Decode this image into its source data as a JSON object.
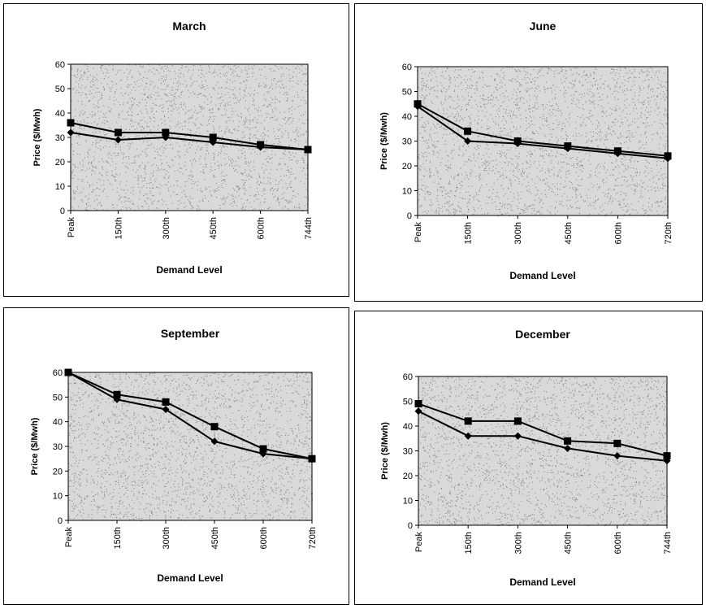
{
  "chart_data": [
    {
      "type": "line",
      "title": "March",
      "xlabel": "Demand Level",
      "ylabel": "Price ($/Mwh)",
      "ylim": [
        0,
        60
      ],
      "yticks": [
        "0",
        "10",
        "20",
        "30",
        "40",
        "50",
        "60"
      ],
      "categories": [
        "Peak",
        "150th",
        "300th",
        "450th",
        "600th",
        "744th"
      ],
      "series": [
        {
          "marker": "square",
          "values": [
            36,
            32,
            32,
            30,
            27,
            25
          ]
        },
        {
          "marker": "diamond",
          "values": [
            32,
            29,
            30,
            28,
            26,
            25
          ]
        }
      ],
      "grid": false,
      "legend": "none"
    },
    {
      "type": "line",
      "title": "June",
      "xlabel": "Demand Level",
      "ylabel": "Price ($/Mwh)",
      "ylim": [
        0,
        60
      ],
      "yticks": [
        "0",
        "10",
        "20",
        "30",
        "40",
        "50",
        "60"
      ],
      "categories": [
        "Peak",
        "150th",
        "300th",
        "450th",
        "600th",
        "720th"
      ],
      "series": [
        {
          "marker": "square",
          "values": [
            45,
            34,
            30,
            28,
            26,
            24
          ]
        },
        {
          "marker": "diamond",
          "values": [
            44,
            30,
            29,
            27,
            25,
            23
          ]
        }
      ],
      "grid": false,
      "legend": "none"
    },
    {
      "type": "line",
      "title": "September",
      "xlabel": "Demand Level",
      "ylabel": "Price ($/Mwh)",
      "ylim": [
        0,
        60
      ],
      "yticks": [
        "0",
        "10",
        "20",
        "30",
        "40",
        "50",
        "60"
      ],
      "categories": [
        "Peak",
        "150th",
        "300th",
        "450th",
        "600th",
        "720th"
      ],
      "series": [
        {
          "marker": "square",
          "values": [
            60,
            51,
            48,
            38,
            29,
            25
          ]
        },
        {
          "marker": "diamond",
          "values": [
            60,
            49,
            45,
            32,
            27,
            25
          ]
        }
      ],
      "grid": false,
      "legend": "none"
    },
    {
      "type": "line",
      "title": "December",
      "xlabel": "Demand Level",
      "ylabel": "Price ($/Mwh)",
      "ylim": [
        0,
        60
      ],
      "yticks": [
        "0",
        "10",
        "20",
        "30",
        "40",
        "50",
        "60"
      ],
      "categories": [
        "Peak",
        "150th",
        "300th",
        "450th",
        "600th",
        "744th"
      ],
      "series": [
        {
          "marker": "square",
          "values": [
            49,
            42,
            42,
            34,
            33,
            28
          ]
        },
        {
          "marker": "diamond",
          "values": [
            46,
            36,
            36,
            31,
            28,
            26
          ]
        }
      ],
      "grid": false,
      "legend": "none"
    }
  ],
  "colors": {
    "line": "#000000",
    "plot_fill": "#d9d9d9",
    "stipple": "#8a8a8a"
  }
}
